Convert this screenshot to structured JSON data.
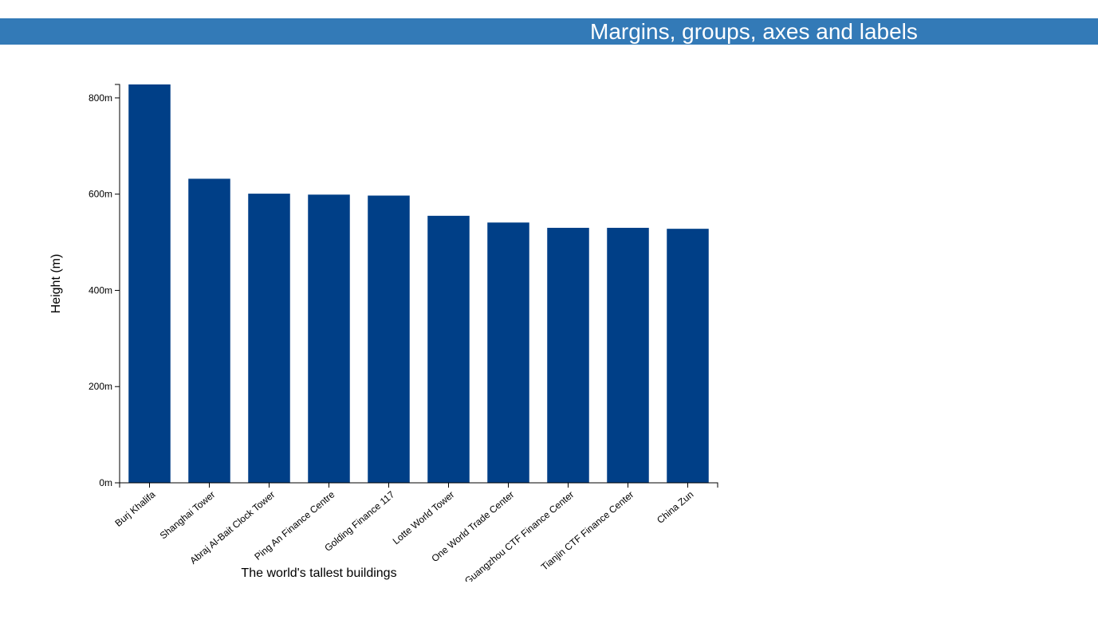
{
  "header": {
    "title": "Margins, groups, axes and labels"
  },
  "colors": {
    "header_bg": "#337ab7",
    "bar": "#003f87"
  },
  "chart_data": {
    "type": "bar",
    "title": "",
    "xlabel": "The world's tallest buildings",
    "ylabel": "Height (m)",
    "categories": [
      "Burj Khalifa",
      "Shanghai Tower",
      "Abraj Al-Bait Clock Tower",
      "Ping An Finance Centre",
      "Golding Finance 117",
      "Lotte World Tower",
      "One World Trade Center",
      "Guangzhou CTF Finance Center",
      "Tianjin CTF Finance Center",
      "China Zun"
    ],
    "values": [
      828,
      632,
      601,
      599,
      597,
      555,
      541,
      530,
      530,
      528
    ],
    "ylim": [
      0,
      828
    ],
    "yticks": [
      {
        "value": 0,
        "label": "0m"
      },
      {
        "value": 200,
        "label": "200m"
      },
      {
        "value": 400,
        "label": "400m"
      },
      {
        "value": 600,
        "label": "600m"
      },
      {
        "value": 800,
        "label": "800m"
      }
    ],
    "grid": false,
    "legend": "none"
  }
}
